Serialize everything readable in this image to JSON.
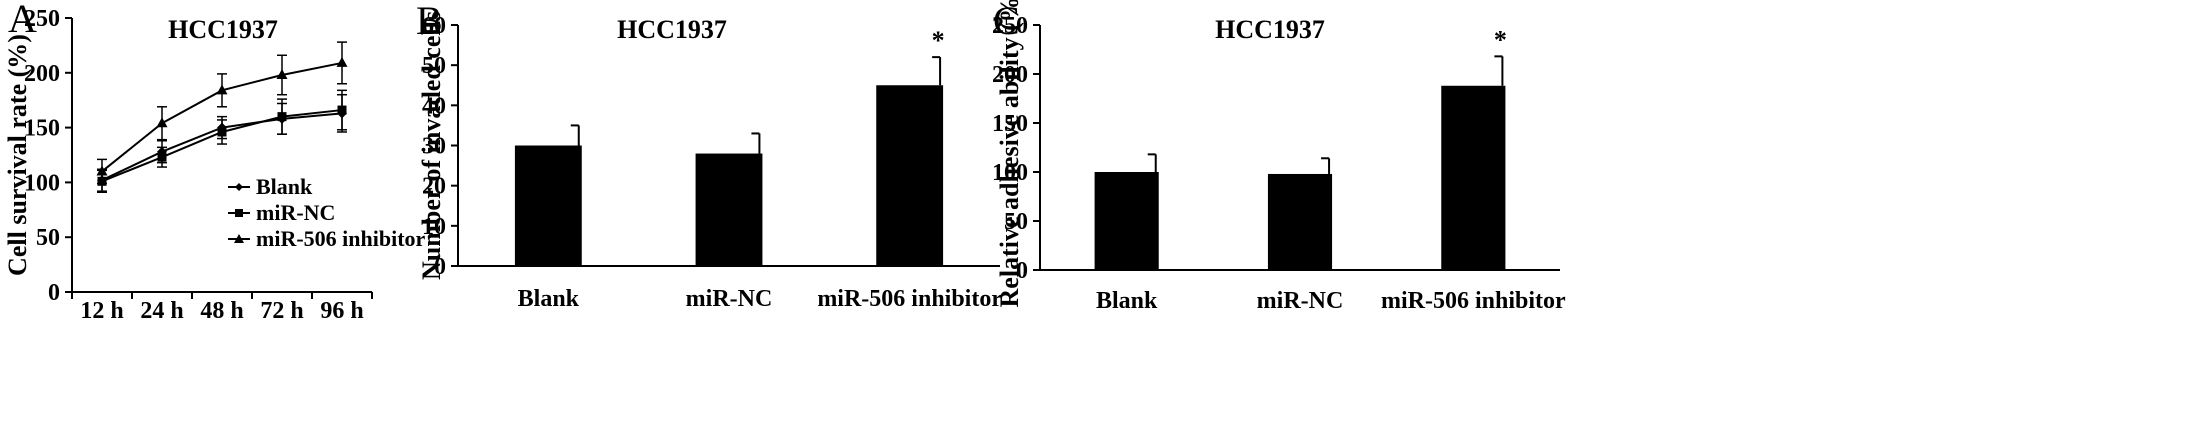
{
  "chart_data": [
    {
      "panel": "A",
      "type": "line",
      "title": "HCC1937",
      "xlabel": "",
      "ylabel": "Cell survival rate (%)",
      "ylim": [
        0,
        250
      ],
      "yticks": [
        "0",
        "50",
        "100",
        "150",
        "200",
        "250"
      ],
      "categories": [
        "12 h",
        "24 h",
        "48 h",
        "72 h",
        "96 h"
      ],
      "legend_position": "lower-right",
      "series": [
        {
          "name": "Blank",
          "marker": "diamond",
          "values": [
            102,
            128,
            150,
            158,
            163
          ],
          "errors": [
            10,
            10,
            10,
            14,
            17
          ]
        },
        {
          "name": "miR-NC",
          "marker": "square",
          "values": [
            101,
            123,
            146,
            160,
            166
          ],
          "errors": [
            10,
            9,
            11,
            16,
            18
          ]
        },
        {
          "name": "miR-506 inhibitor",
          "marker": "triangle",
          "values": [
            110,
            154,
            184,
            198,
            209
          ],
          "errors": [
            11,
            15,
            15,
            18,
            19
          ]
        }
      ]
    },
    {
      "panel": "B",
      "type": "bar",
      "title": "HCC1937",
      "xlabel": "",
      "ylabel": "Number of invaded cells",
      "ylim": [
        0,
        60
      ],
      "yticks": [
        "0",
        "10",
        "20",
        "30",
        "40",
        "50",
        "60"
      ],
      "categories": [
        "Blank",
        "miR-NC",
        "miR-506 inhibitor"
      ],
      "values": [
        30,
        28,
        45
      ],
      "errors": [
        5,
        5,
        7
      ],
      "annotations": [
        "",
        "",
        "*"
      ]
    },
    {
      "panel": "C",
      "type": "bar",
      "title": "HCC1937",
      "xlabel": "",
      "ylabel": "Relative adhesive ability (%)",
      "ylim": [
        0,
        250
      ],
      "yticks": [
        "0",
        "50",
        "100",
        "150",
        "200",
        "250"
      ],
      "categories": [
        "Blank",
        "miR-NC",
        "miR-506 inhibitor"
      ],
      "values": [
        100,
        98,
        188
      ],
      "errors": [
        18,
        16,
        30
      ],
      "annotations": [
        "",
        "",
        "*"
      ]
    }
  ]
}
